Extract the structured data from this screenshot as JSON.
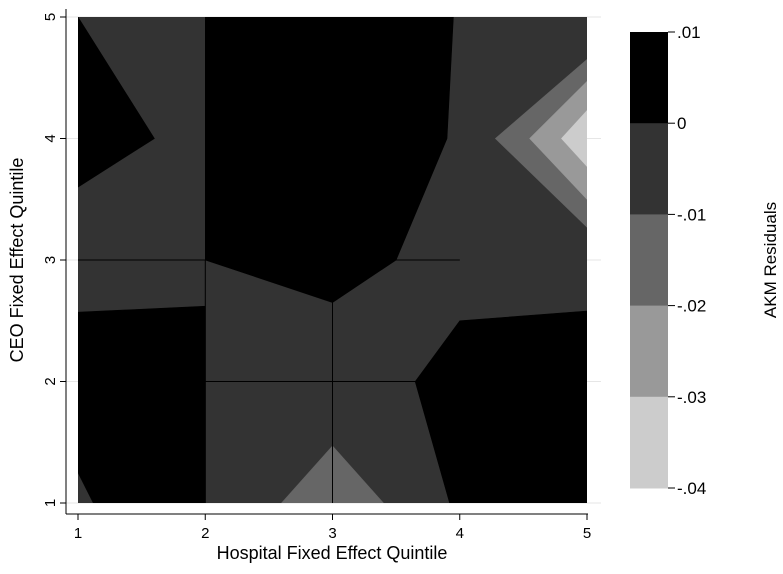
{
  "chart_data": {
    "type": "heatmap",
    "subtype": "filled-contour",
    "xlabel": "Hospital Fixed Effect Quintile",
    "ylabel": "CEO Fixed Effect Quintile",
    "colorbar_label": "AKM Residuals",
    "xlim": [
      1,
      5
    ],
    "ylim": [
      1,
      5
    ],
    "x_ticks": [
      1,
      2,
      3,
      4,
      5
    ],
    "y_ticks": [
      1,
      2,
      3,
      4,
      5
    ],
    "grid": true,
    "legend_placement": "right colorbar",
    "levels": [
      {
        "min": 0,
        "max": 0.01,
        "color": "#000000"
      },
      {
        "min": -0.01,
        "max": 0,
        "color": "#333333"
      },
      {
        "min": -0.02,
        "max": -0.01,
        "color": "#666666"
      },
      {
        "min": -0.03,
        "max": -0.02,
        "color": "#999999"
      },
      {
        "min": -0.04,
        "max": -0.03,
        "color": "#cccccc"
      }
    ],
    "colorbar_ticks": [
      ".01",
      "0",
      "-.01",
      "-.02",
      "-.03",
      "-.04"
    ],
    "regions": [
      {
        "level": 1,
        "points": [
          [
            1,
            1
          ],
          [
            5,
            1
          ],
          [
            5,
            5
          ],
          [
            1,
            5
          ]
        ]
      },
      {
        "level": 0,
        "points": [
          [
            1,
            5
          ],
          [
            1.6,
            4
          ],
          [
            1,
            3.6
          ]
        ]
      },
      {
        "level": 0,
        "points": [
          [
            2,
            5
          ],
          [
            3,
            5
          ],
          [
            3.95,
            5
          ],
          [
            3.9,
            4
          ],
          [
            3.5,
            3
          ],
          [
            3,
            2.65
          ],
          [
            2,
            3
          ]
        ]
      },
      {
        "level": 0,
        "points": [
          [
            1,
            1.25
          ],
          [
            1,
            2.57
          ],
          [
            2,
            2.62
          ],
          [
            2,
            1
          ],
          [
            1.12,
            1
          ]
        ]
      },
      {
        "level": 0,
        "points": [
          [
            3.92,
            1
          ],
          [
            3.65,
            2
          ],
          [
            4,
            2.5
          ],
          [
            5,
            2.58
          ],
          [
            5,
            1
          ]
        ]
      },
      {
        "level": 2,
        "points": [
          [
            2.6,
            1
          ],
          [
            3,
            1.47
          ],
          [
            3.4,
            1
          ],
          [
            3.03,
            1
          ]
        ]
      },
      {
        "level": 2,
        "points": [
          [
            5,
            4.65
          ],
          [
            4.28,
            4
          ],
          [
            5,
            3.27
          ]
        ]
      },
      {
        "level": 3,
        "points": [
          [
            5,
            4.47
          ],
          [
            4.55,
            4
          ],
          [
            5,
            3.5
          ]
        ]
      },
      {
        "level": 4,
        "points": [
          [
            5,
            4.23
          ],
          [
            4.8,
            4
          ],
          [
            5,
            3.77
          ]
        ]
      }
    ],
    "guide_lines": [
      {
        "points": [
          [
            1,
            3
          ],
          [
            4,
            3
          ]
        ]
      },
      {
        "points": [
          [
            2,
            2
          ],
          [
            4,
            2
          ]
        ]
      },
      {
        "points": [
          [
            3,
            2.65
          ],
          [
            3,
            1
          ]
        ]
      },
      {
        "points": [
          [
            2,
            3
          ],
          [
            2,
            1
          ]
        ]
      }
    ]
  }
}
